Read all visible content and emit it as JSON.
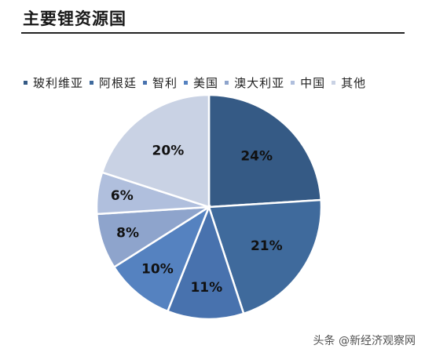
{
  "title": "主要锂资源国",
  "watermark": "头条 @新经济观察网",
  "chart_data": {
    "type": "pie",
    "title": "主要锂资源国",
    "legend_position": "top",
    "categories": [
      "玻利维亚",
      "阿根廷",
      "智利",
      "美国",
      "澳大利亚",
      "中国",
      "其他"
    ],
    "values": [
      24,
      21,
      11,
      10,
      8,
      6,
      20
    ],
    "data_labels": [
      "24%",
      "21%",
      "11%",
      "10%",
      "8%",
      "6%",
      "20%"
    ],
    "colors": [
      "#355a85",
      "#3f6a9c",
      "#4872ae",
      "#5582c0",
      "#8ea4cc",
      "#b0bfdd",
      "#c9d2e4"
    ]
  }
}
